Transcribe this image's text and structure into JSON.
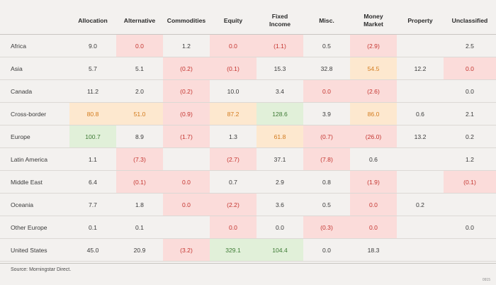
{
  "table": {
    "columns": [
      {
        "key": "allocation",
        "lines": [
          "Allocation"
        ]
      },
      {
        "key": "alternative",
        "lines": [
          "Alternative"
        ]
      },
      {
        "key": "commodities",
        "lines": [
          "Commodities"
        ]
      },
      {
        "key": "equity",
        "lines": [
          "Equity"
        ]
      },
      {
        "key": "fixed_income",
        "lines": [
          "Fixed",
          "Income"
        ]
      },
      {
        "key": "misc",
        "lines": [
          "Misc."
        ]
      },
      {
        "key": "money_market",
        "lines": [
          "Money",
          "Market"
        ]
      },
      {
        "key": "property",
        "lines": [
          "Property"
        ]
      },
      {
        "key": "unclassified",
        "lines": [
          "Unclassified"
        ]
      }
    ],
    "rows": [
      {
        "label": "Africa",
        "cells": [
          {
            "v": "9.0"
          },
          {
            "v": "0.0",
            "bg": "red",
            "neg": true
          },
          {
            "v": "1.2"
          },
          {
            "v": "0.0",
            "bg": "red",
            "neg": true
          },
          {
            "v": "(1.1)",
            "bg": "red",
            "neg": true
          },
          {
            "v": "0.5"
          },
          {
            "v": "(2.9)",
            "bg": "red",
            "neg": true
          },
          {
            "v": ""
          },
          {
            "v": "2.5"
          }
        ]
      },
      {
        "label": "Asia",
        "cells": [
          {
            "v": "5.7"
          },
          {
            "v": "5.1"
          },
          {
            "v": "(0.2)",
            "bg": "red",
            "neg": true
          },
          {
            "v": "(0.1)",
            "bg": "red",
            "neg": true
          },
          {
            "v": "15.3"
          },
          {
            "v": "32.8"
          },
          {
            "v": "54.5",
            "bg": "orange"
          },
          {
            "v": "12.2"
          },
          {
            "v": "0.0",
            "bg": "red",
            "neg": true
          }
        ]
      },
      {
        "label": "Canada",
        "cells": [
          {
            "v": "11.2"
          },
          {
            "v": "2.0"
          },
          {
            "v": "(0.2)",
            "bg": "red",
            "neg": true
          },
          {
            "v": "10.0"
          },
          {
            "v": "3.4"
          },
          {
            "v": "0.0",
            "bg": "red",
            "neg": true
          },
          {
            "v": "(2.6)",
            "bg": "red",
            "neg": true
          },
          {
            "v": ""
          },
          {
            "v": "0.0"
          }
        ]
      },
      {
        "label": "Cross-border",
        "cells": [
          {
            "v": "80.8",
            "bg": "orange"
          },
          {
            "v": "51.0",
            "bg": "orange"
          },
          {
            "v": "(0.9)",
            "bg": "red",
            "neg": true
          },
          {
            "v": "87.2",
            "bg": "orange"
          },
          {
            "v": "128.6",
            "bg": "green"
          },
          {
            "v": "3.9"
          },
          {
            "v": "86.0",
            "bg": "orange"
          },
          {
            "v": "0.6"
          },
          {
            "v": "2.1"
          }
        ]
      },
      {
        "label": "Europe",
        "cells": [
          {
            "v": "100.7",
            "bg": "green"
          },
          {
            "v": "8.9"
          },
          {
            "v": "(1.7)",
            "bg": "red",
            "neg": true
          },
          {
            "v": "1.3"
          },
          {
            "v": "61.8",
            "bg": "orange"
          },
          {
            "v": "(0.7)",
            "bg": "red",
            "neg": true
          },
          {
            "v": "(26.0)",
            "bg": "red",
            "neg": true
          },
          {
            "v": "13.2"
          },
          {
            "v": "0.2"
          }
        ]
      },
      {
        "label": "Latin America",
        "cells": [
          {
            "v": "1.1"
          },
          {
            "v": "(7.3)",
            "bg": "red",
            "neg": true
          },
          {
            "v": ""
          },
          {
            "v": "(2.7)",
            "bg": "red",
            "neg": true
          },
          {
            "v": "37.1"
          },
          {
            "v": "(7.8)",
            "bg": "red",
            "neg": true
          },
          {
            "v": "0.6"
          },
          {
            "v": ""
          },
          {
            "v": "1.2"
          }
        ]
      },
      {
        "label": "Middle East",
        "cells": [
          {
            "v": "6.4"
          },
          {
            "v": "(0.1)",
            "bg": "red",
            "neg": true
          },
          {
            "v": "0.0",
            "bg": "red",
            "neg": true
          },
          {
            "v": "0.7"
          },
          {
            "v": "2.9"
          },
          {
            "v": "0.8"
          },
          {
            "v": "(1.9)",
            "bg": "red",
            "neg": true
          },
          {
            "v": ""
          },
          {
            "v": "(0.1)",
            "bg": "red",
            "neg": true
          }
        ]
      },
      {
        "label": "Oceania",
        "cells": [
          {
            "v": "7.7"
          },
          {
            "v": "1.8"
          },
          {
            "v": "0.0",
            "bg": "red",
            "neg": true
          },
          {
            "v": "(2.2)",
            "bg": "red",
            "neg": true
          },
          {
            "v": "3.6"
          },
          {
            "v": "0.5"
          },
          {
            "v": "0.0",
            "bg": "red",
            "neg": true
          },
          {
            "v": "0.2"
          },
          {
            "v": ""
          }
        ]
      },
      {
        "label": "Other Europe",
        "cells": [
          {
            "v": "0.1"
          },
          {
            "v": "0.1"
          },
          {
            "v": ""
          },
          {
            "v": "0.0",
            "bg": "red",
            "neg": true
          },
          {
            "v": "0.0"
          },
          {
            "v": "(0.3)",
            "bg": "red",
            "neg": true
          },
          {
            "v": "0.0",
            "bg": "red",
            "neg": true
          },
          {
            "v": ""
          },
          {
            "v": "0.0"
          }
        ]
      },
      {
        "label": "United States",
        "cells": [
          {
            "v": "45.0"
          },
          {
            "v": "20.9"
          },
          {
            "v": "(3.2)",
            "bg": "red",
            "neg": true
          },
          {
            "v": "329.1",
            "bg": "green"
          },
          {
            "v": "104.4",
            "bg": "green"
          },
          {
            "v": "0.0"
          },
          {
            "v": "18.3"
          },
          {
            "v": ""
          },
          {
            "v": ""
          }
        ]
      }
    ]
  },
  "footer": {
    "source": "Source: Morningstar Direct.",
    "code": "0915"
  },
  "colors": {
    "red_fill": "#fbdcda",
    "orange_fill": "#fde8cf",
    "green_fill": "#e1f0d9",
    "negative_text": "#c4342f"
  }
}
